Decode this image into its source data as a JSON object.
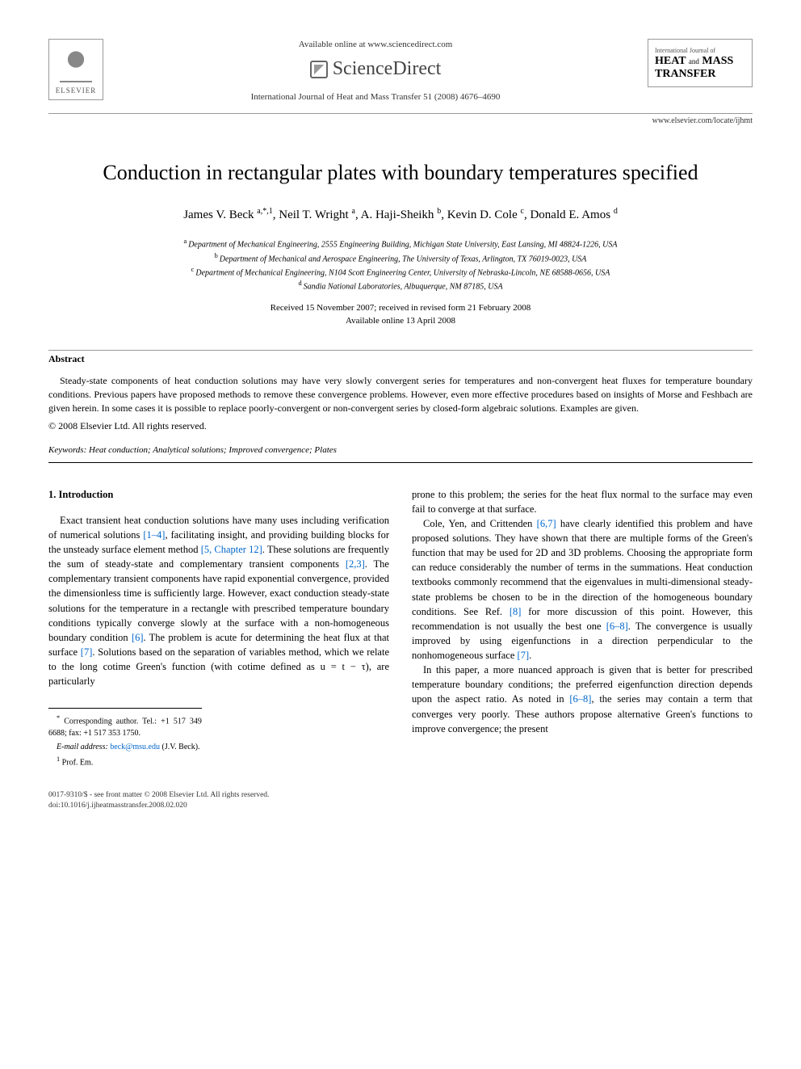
{
  "header": {
    "publisher": "ELSEVIER",
    "available_online": "Available online at www.sciencedirect.com",
    "sciencedirect": "ScienceDirect",
    "journal_ref": "International Journal of Heat and Mass Transfer 51 (2008) 4676–4690",
    "journal_box": {
      "intl": "International Journal of",
      "line1": "HEAT",
      "and": "and",
      "line1b": "MASS",
      "line2": "TRANSFER"
    },
    "locate_url": "www.elsevier.com/locate/ijhmt"
  },
  "title": "Conduction in rectangular plates with boundary temperatures specified",
  "authors_html": "James V. Beck <sup>a,*,1</sup>, Neil T. Wright <sup>a</sup>, A. Haji-Sheikh <sup>b</sup>, Kevin D. Cole <sup>c</sup>, Donald E. Amos <sup>d</sup>",
  "affiliations": [
    {
      "sup": "a",
      "text": "Department of Mechanical Engineering, 2555 Engineering Building, Michigan State University, East Lansing, MI 48824-1226, USA"
    },
    {
      "sup": "b",
      "text": "Department of Mechanical and Aerospace Engineering, The University of Texas, Arlington, TX 76019-0023, USA"
    },
    {
      "sup": "c",
      "text": "Department of Mechanical Engineering, N104 Scott Engineering Center, University of Nebraska-Lincoln, NE 68588-0656, USA"
    },
    {
      "sup": "d",
      "text": "Sandia National Laboratories, Albuquerque, NM 87185, USA"
    }
  ],
  "dates": {
    "received": "Received 15 November 2007; received in revised form 21 February 2008",
    "online": "Available online 13 April 2008"
  },
  "abstract": {
    "heading": "Abstract",
    "text": "Steady-state components of heat conduction solutions may have very slowly convergent series for temperatures and non-convergent heat fluxes for temperature boundary conditions. Previous papers have proposed methods to remove these convergence problems. However, even more effective procedures based on insights of Morse and Feshbach are given herein. In some cases it is possible to replace poorly-convergent or non-convergent series by closed-form algebraic solutions. Examples are given.",
    "copyright": "© 2008 Elsevier Ltd. All rights reserved."
  },
  "keywords": {
    "label": "Keywords:",
    "text": " Heat conduction; Analytical solutions; Improved convergence; Plates"
  },
  "body": {
    "section_heading": "1. Introduction",
    "col1_p1_a": "Exact transient heat conduction solutions have many uses including verification of numerical solutions ",
    "col1_p1_ref1": "[1–4]",
    "col1_p1_b": ", facilitating insight, and providing building blocks for the unsteady surface element method ",
    "col1_p1_ref2": "[5, Chapter 12]",
    "col1_p1_c": ". These solutions are frequently the sum of steady-state and complementary transient components ",
    "col1_p1_ref3": "[2,3]",
    "col1_p1_d": ". The complementary transient components have rapid exponential convergence, provided the dimensionless time is sufficiently large. However, exact conduction steady-state solutions for the temperature in a rectangle with prescribed temperature boundary conditions typically converge slowly at the surface with a non-homogeneous boundary condition ",
    "col1_p1_ref4": "[6]",
    "col1_p1_e": ". The problem is acute for determining the heat flux at that surface ",
    "col1_p1_ref5": "[7]",
    "col1_p1_f": ". Solutions based on the separation of variables method, which we relate to the long cotime Green's function (with cotime defined as u = t − τ), are particularly",
    "col2_p0": "prone to this problem; the series for the heat flux normal to the surface may even fail to converge at that surface.",
    "col2_p1_a": "Cole, Yen, and Crittenden ",
    "col2_p1_ref1": "[6,7]",
    "col2_p1_b": " have clearly identified this problem and have proposed solutions. They have shown that there are multiple forms of the Green's function that may be used for 2D and 3D problems. Choosing the appropriate form can reduce considerably the number of terms in the summations. Heat conduction textbooks commonly recommend that the eigenvalues in multi-dimensional steady-state problems be chosen to be in the direction of the homogeneous boundary conditions. See Ref. ",
    "col2_p1_ref2": "[8]",
    "col2_p1_c": " for more discussion of this point. However, this recommendation is not usually the best one ",
    "col2_p1_ref3": "[6–8]",
    "col2_p1_d": ". The convergence is usually improved by using eigenfunctions in a direction perpendicular to the nonhomogeneous surface ",
    "col2_p1_ref4": "[7]",
    "col2_p1_e": ".",
    "col2_p2_a": "In this paper, a more nuanced approach is given that is better for prescribed temperature boundary conditions; the preferred eigenfunction direction depends upon the aspect ratio. As noted in ",
    "col2_p2_ref1": "[6–8]",
    "col2_p2_b": ", the series may contain a term that converges very poorly. These authors propose alternative Green's functions to improve convergence; the present"
  },
  "footnotes": {
    "corr": "Corresponding author. Tel.: +1 517 349 6688; fax: +1 517 353 1750.",
    "email_label": "E-mail address:",
    "email": "beck@msu.edu",
    "email_name": "(J.V. Beck).",
    "prof": "Prof. Em."
  },
  "footer": {
    "line1": "0017-9310/$ - see front matter © 2008 Elsevier Ltd. All rights reserved.",
    "line2": "doi:10.1016/j.ijheatmasstransfer.2008.02.020"
  }
}
